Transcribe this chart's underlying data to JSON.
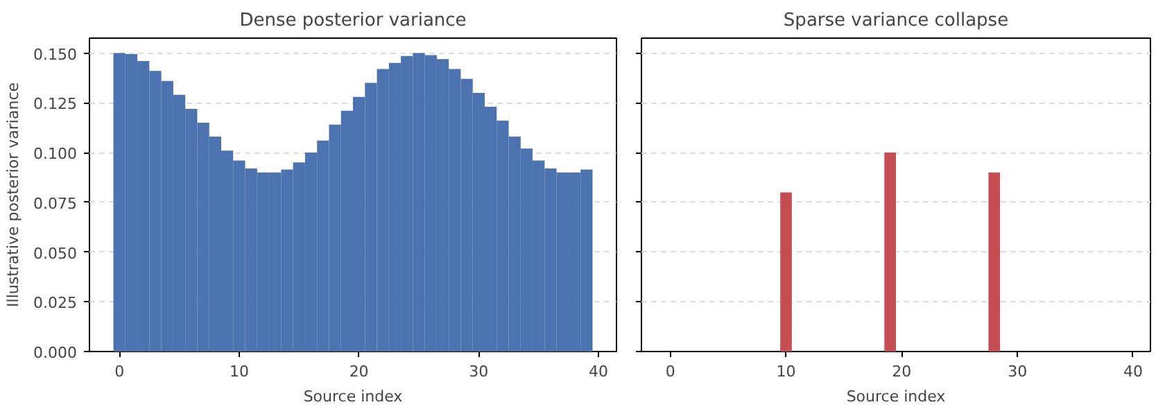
{
  "chart_data": [
    {
      "type": "bar",
      "title": "Dense posterior variance",
      "xlabel": "Source index",
      "ylabel": "Illustrative posterior variance",
      "x": [
        0,
        1,
        2,
        3,
        4,
        5,
        6,
        7,
        8,
        9,
        10,
        11,
        12,
        13,
        14,
        15,
        16,
        17,
        18,
        19,
        20,
        21,
        22,
        23,
        24,
        25,
        26,
        27,
        28,
        29,
        30,
        31,
        32,
        33,
        34,
        35,
        36,
        37,
        38,
        39
      ],
      "series": [
        {
          "color": "#4c72b0",
          "values": [
            0.15,
            0.1495,
            0.146,
            0.141,
            0.136,
            0.129,
            0.122,
            0.115,
            0.108,
            0.101,
            0.096,
            0.092,
            0.09,
            0.09,
            0.0915,
            0.095,
            0.1,
            0.106,
            0.114,
            0.121,
            0.128,
            0.135,
            0.142,
            0.145,
            0.1485,
            0.15,
            0.149,
            0.147,
            0.142,
            0.137,
            0.13,
            0.123,
            0.116,
            0.108,
            0.102,
            0.096,
            0.092,
            0.09,
            0.09,
            0.0915
          ]
        }
      ],
      "xlim": [
        -2.5,
        41.5
      ],
      "xticks": [
        0,
        10,
        20,
        30,
        40
      ],
      "ylim": [
        0,
        0.1575
      ],
      "yticks": [
        {
          "value": 0,
          "label": "0.000"
        },
        {
          "value": 0.025,
          "label": "0.025"
        },
        {
          "value": 0.05,
          "label": "0.050"
        },
        {
          "value": 0.075,
          "label": "0.075"
        },
        {
          "value": 0.1,
          "label": "0.100"
        },
        {
          "value": 0.125,
          "label": "0.125"
        },
        {
          "value": 0.15,
          "label": "0.150"
        }
      ],
      "grid": "y"
    },
    {
      "type": "bar",
      "title": "Sparse variance collapse",
      "xlabel": "Source index",
      "x": [
        10,
        19,
        28
      ],
      "series": [
        {
          "color": "#c44e52",
          "values": [
            0.08,
            0.1,
            0.09
          ]
        }
      ],
      "xlim": [
        -2.5,
        41.5
      ],
      "xticks": [
        0,
        10,
        20,
        30,
        40
      ],
      "ylim": [
        0,
        0.1575
      ],
      "yticks": [
        {
          "value": 0,
          "label": null
        },
        {
          "value": 0.025,
          "label": null
        },
        {
          "value": 0.05,
          "label": null
        },
        {
          "value": 0.075,
          "label": null
        },
        {
          "value": 0.1,
          "label": null
        },
        {
          "value": 0.125,
          "label": null
        },
        {
          "value": 0.15,
          "label": null
        }
      ],
      "grid": "y",
      "tick_labels": "x"
    }
  ]
}
